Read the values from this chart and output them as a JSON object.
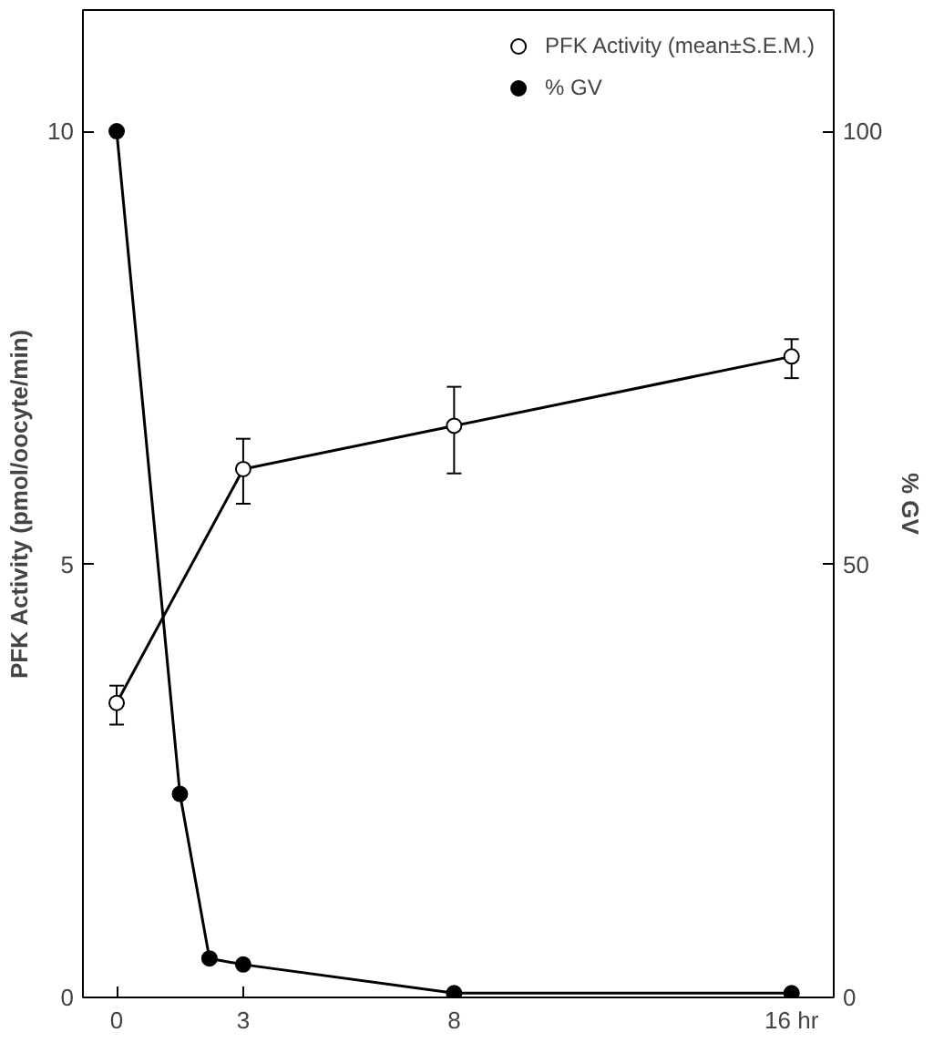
{
  "chart_data": {
    "type": "line",
    "ylabel": "PFK Activity (pmol/oocyte/min)",
    "y2label": "% GV",
    "xlim": [
      -0.8,
      17
    ],
    "xticks": [
      0,
      3,
      8,
      {
        "value": 16,
        "label": "16 hr"
      }
    ],
    "ylim": [
      0,
      11.4
    ],
    "yticks": [
      0,
      5,
      10
    ],
    "y2lim": [
      0,
      114
    ],
    "y2ticks": [
      0,
      50,
      100
    ],
    "grid": false,
    "legend": "top right",
    "line_style": "solid",
    "series": [
      {
        "name": "PFK Activity (mean±S.E.M.)",
        "color": "#000000",
        "marker": "circle_open",
        "x": [
          0,
          3,
          8,
          16
        ],
        "values": [
          3.4,
          6.1,
          6.6,
          7.4
        ],
        "errors": [
          [
            3.15,
            3.6
          ],
          [
            5.7,
            6.45
          ],
          [
            6.05,
            7.05
          ],
          [
            7.15,
            7.6
          ]
        ]
      },
      {
        "name": "% GV",
        "color": "#000000",
        "marker": "circle",
        "axis": "y2",
        "x": [
          0,
          1.5,
          2.2,
          3,
          8,
          16
        ],
        "values": [
          100,
          23.5,
          4.5,
          3.8,
          0.5,
          0.5
        ]
      }
    ]
  }
}
